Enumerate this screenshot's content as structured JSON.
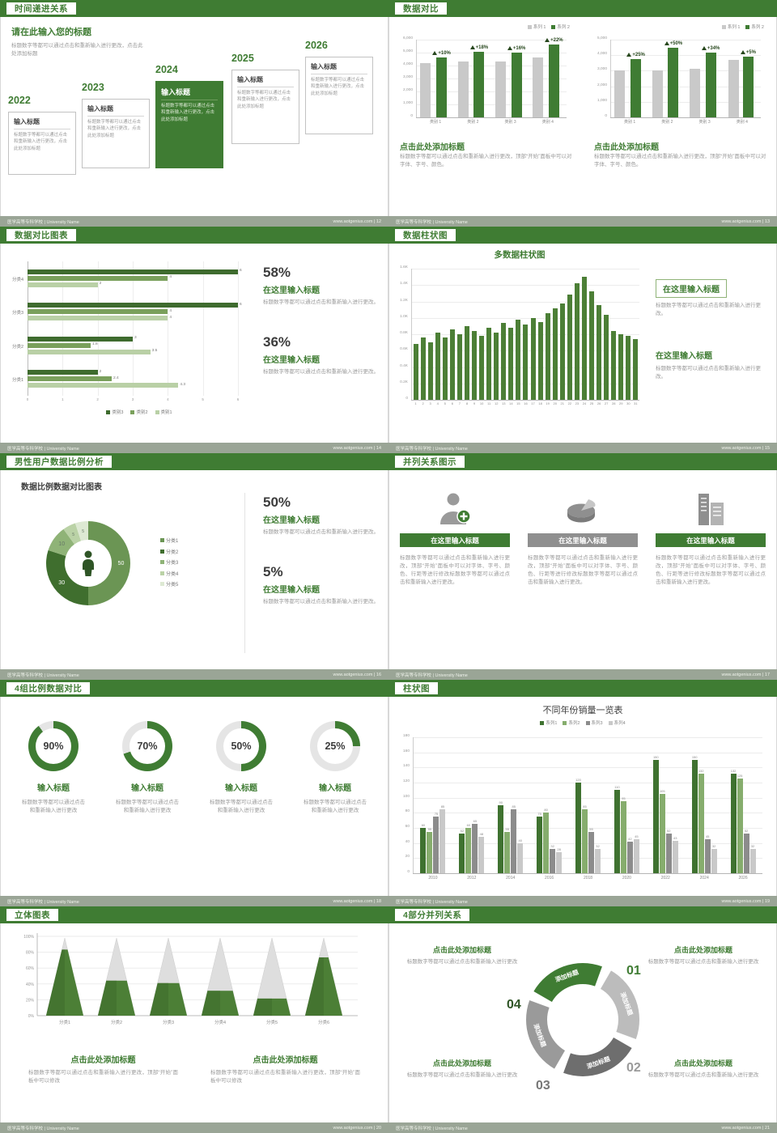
{
  "theme": {
    "green_dark": "#2f5526",
    "green": "#3f7c33",
    "green_mid": "#86ad6d",
    "green_light": "#b9d0a6",
    "gray": "#c9c9c9",
    "footer_bg": "#9aa596"
  },
  "footer": {
    "school": "医学高等专科学校 | University Name",
    "site": "www.aotgenius.com"
  },
  "slides": {
    "s12": {
      "title": "时间递进关系",
      "page_info": "www.aotgenius.com | 12",
      "intro_title": "请在此输入您的标题",
      "intro_body": "标题数字等都可以通过点击和重新输入进行更改，点击此处添加标题",
      "box_title": "输入标题",
      "box_body": "标题数字等都可以通过点击和重新输入进行更改，点击此处添加标题",
      "years": [
        "2022",
        "2023",
        "2024",
        "2025",
        "2026"
      ]
    },
    "s13": {
      "title": "数据对比",
      "page_info": "www.aotgenius.com | 13",
      "charts": [
        {
          "type": "bar",
          "categories": [
            "类别 1",
            "类别 2",
            "类别 3",
            "类别 4"
          ],
          "series": [
            {
              "name": "系列 1",
              "color": "#c9c9c9",
              "values": [
                4200,
                4300,
                4300,
                4600
              ]
            },
            {
              "name": "系列 2",
              "color": "#3f7c33",
              "values": [
                4620,
                5070,
                5000,
                5600
              ],
              "labels": [
                "+10%",
                "+18%",
                "+16%",
                "+22%"
              ]
            }
          ],
          "yticks": [
            "6,000",
            "5,000",
            "4,000",
            "3,000",
            "2,000",
            "1,000",
            "0"
          ],
          "ymax": 6000,
          "caption_title": "点击此处添加标题",
          "caption_body": "标题数字等都可以通过点击和重新输入进行更改，顶部“开始”面板中可以对字体、字号、颜色。"
        },
        {
          "type": "bar",
          "categories": [
            "类别 1",
            "类别 2",
            "类别 3",
            "类别 4"
          ],
          "series": [
            {
              "name": "系列 1",
              "color": "#c9c9c9",
              "values": [
                3000,
                3000,
                3100,
                3700
              ]
            },
            {
              "name": "系列 2",
              "color": "#3f7c33",
              "values": [
                3750,
                4500,
                4150,
                3900
              ],
              "labels": [
                "+25%",
                "+50%",
                "+34%",
                "+5%"
              ]
            }
          ],
          "yticks": [
            "5,000",
            "4,000",
            "3,000",
            "2,000",
            "1,000",
            "0"
          ],
          "ymax": 5000,
          "caption_title": "点击此处添加标题",
          "caption_body": "标题数字等都可以通过点击和重新输入进行更改，顶部“开始”面板中可以对字体、字号、颜色。"
        }
      ]
    },
    "s14": {
      "title": "数据对比图表",
      "page_info": "www.aotgenius.com | 14",
      "chart": {
        "type": "bar",
        "orientation": "horizontal",
        "categories": [
          "分类4",
          "分类3",
          "分类2",
          "分类1"
        ],
        "series": [
          {
            "name": "类别3",
            "color": "#3e6b2e",
            "values": [
              6,
              6,
              3,
              2
            ]
          },
          {
            "name": "类别2",
            "color": "#7aa05c",
            "values": [
              4,
              4,
              1.8,
              2.4
            ]
          },
          {
            "name": "类别1",
            "color": "#b9d0a6",
            "values": [
              2,
              4,
              3.5,
              4.3
            ]
          }
        ],
        "xticks": [
          "0",
          "1",
          "2",
          "3",
          "4",
          "5",
          "6"
        ],
        "xmax": 6
      },
      "stats": [
        {
          "pct": "58%",
          "title": "在这里输入标题",
          "body": "标题数字等都可以通过点击和重新输入进行更改。"
        },
        {
          "pct": "36%",
          "title": "在这里输入标题",
          "body": "标题数字等都可以通过点击和重新输入进行更改。"
        }
      ]
    },
    "s15": {
      "title": "数据柱状图",
      "page_info": "www.aotgenius.com | 15",
      "chart_title": "多数据柱状图",
      "bar_color": "#4c7f36",
      "values": [
        680,
        760,
        700,
        820,
        760,
        860,
        800,
        900,
        840,
        780,
        880,
        820,
        940,
        880,
        980,
        920,
        1000,
        950,
        1060,
        1120,
        1180,
        1280,
        1420,
        1500,
        1320,
        1160,
        1040,
        840,
        800,
        780,
        740
      ],
      "xlabels": [
        "1",
        "2",
        "3",
        "4",
        "5",
        "6",
        "7",
        "8",
        "9",
        "10",
        "11",
        "12",
        "13",
        "14",
        "15",
        "16",
        "17",
        "18",
        "19",
        "20",
        "21",
        "22",
        "23",
        "24",
        "25",
        "26",
        "27",
        "28",
        "29",
        "30",
        "31"
      ],
      "yticks": [
        "1.6K",
        "1.4K",
        "1.2K",
        "1.0K",
        "0.8K",
        "0.6K",
        "0.4K",
        "0.2K",
        "0"
      ],
      "ymax": 1600,
      "notes": [
        {
          "title": "在这里输入标题",
          "body": "标题数字等都可以通过点击和重新输入进行更改。"
        },
        {
          "title": "在这里输入标题",
          "body": "标题数字等都可以通过点击和重新输入进行更改。"
        }
      ]
    },
    "s16": {
      "title": "男性用户数据比例分析",
      "page_info": "www.aotgenius.com | 16",
      "chart_title": "数据比例数据对比图表",
      "donut": {
        "type": "pie",
        "values": [
          50,
          30,
          10,
          5,
          5
        ],
        "labels": [
          "50",
          "30",
          "10",
          "5",
          "5"
        ],
        "colors": [
          "#6b9554",
          "#3f6e2e",
          "#8fb377",
          "#bad2a6",
          "#dde9d3"
        ],
        "legend": [
          "分类1",
          "分类2",
          "分类3",
          "分类4",
          "分类5"
        ]
      },
      "stats": [
        {
          "pct": "50%",
          "title": "在这里输入标题",
          "body": "标题数字等都可以通过点击和重新输入进行更改。"
        },
        {
          "pct": "5%",
          "title": "在这里输入标题",
          "body": "标题数字等都可以通过点击和重新输入进行更改。"
        }
      ]
    },
    "s17": {
      "title": "并列关系图示",
      "page_info": "www.aotgenius.com | 17",
      "columns": [
        {
          "icon": "nurse-icon",
          "button": "在这里输入标题",
          "body": "标题数字等都可以通过点击和重新输入进行更改，顶部“开始”面板中可以对字体、字号、颜色、行距等进行修改标题数字等都可以通过点击和重新输入进行更改。"
        },
        {
          "icon": "pie-3d-icon",
          "button": "在这里输入标题",
          "body": "标题数字等都可以通过点击和重新输入进行更改，顶部“开始”面板中可以对字体、字号、颜色、行距等进行修改标题数字等都可以通过点击和重新输入进行更改。"
        },
        {
          "icon": "building-icon",
          "button": "在这里输入标题",
          "body": "标题数字等都可以通过点击和重新输入进行更改，顶部“开始”面板中可以对字体、字号、颜色、行距等进行修改标题数字等都可以通过点击和重新输入进行更改。"
        }
      ]
    },
    "s18": {
      "title": "4组比例数据对比",
      "page_info": "www.aotgenius.com | 18",
      "ring_color": "#3f7c33",
      "items": [
        {
          "pct": 90,
          "label": "90%",
          "title": "输入标题",
          "body": "标题数字等都可以通过点击和重新输入进行更改"
        },
        {
          "pct": 70,
          "label": "70%",
          "title": "输入标题",
          "body": "标题数字等都可以通过点击和重新输入进行更改"
        },
        {
          "pct": 50,
          "label": "50%",
          "title": "输入标题",
          "body": "标题数字等都可以通过点击和重新输入进行更改"
        },
        {
          "pct": 25,
          "label": "25%",
          "title": "输入标题",
          "body": "标题数字等都可以通过点击和重新输入进行更改"
        }
      ]
    },
    "s19": {
      "title": "柱状图",
      "page_info": "www.aotgenius.com | 19",
      "chart": {
        "type": "bar",
        "title": "不同年份销量一览表",
        "categories": [
          "2010",
          "2012",
          "2014",
          "2016",
          "2018",
          "2020",
          "2022",
          "2024",
          "2026"
        ],
        "series": [
          {
            "name": "系列1",
            "color": "#3f7230",
            "values": [
              60,
              52,
              90,
              75,
              120,
              110,
              150,
              150,
              132
            ]
          },
          {
            "name": "系列2",
            "color": "#86ad6d",
            "values": [
              55,
              60,
              55,
              80,
              85,
              95,
              105,
              132,
              125
            ]
          },
          {
            "name": "系列3",
            "color": "#8c8c8c",
            "values": [
              75,
              65,
              85,
              32,
              55,
              42,
              52,
              45,
              52
            ]
          },
          {
            "name": "系列4",
            "color": "#c9c9c9",
            "values": [
              85,
              48,
              40,
              28,
              32,
              45,
              43,
              32,
              32
            ]
          }
        ],
        "yticks": [
          "180",
          "160",
          "140",
          "120",
          "100",
          "80",
          "60",
          "40",
          "20",
          "0"
        ],
        "ymax": 180
      }
    },
    "s20": {
      "title": "立体图表",
      "page_info": "www.aotgenius.com | 20",
      "cones": {
        "type": "bar",
        "categories": [
          "分类1",
          "分类2",
          "分类3",
          "分类4",
          "分类5",
          "分类6"
        ],
        "values": [
          85,
          45,
          42,
          32,
          22,
          75
        ],
        "yticks": [
          "100%",
          "80%",
          "60%",
          "40%",
          "20%",
          "0%"
        ]
      },
      "notes": [
        {
          "title": "点击此处添加标题",
          "body": "标题数字等都可以通过点击和重新输入进行更改，顶部“开始”面板中可以修改"
        },
        {
          "title": "点击此处添加标题",
          "body": "标题数字等都可以通过点击和重新输入进行更改，顶部“开始”面板中可以修改"
        }
      ]
    },
    "s21": {
      "title": "4部分并列关系",
      "page_info": "www.aotgenius.com | 21",
      "segments": [
        "添加标题",
        "添加标题",
        "添加标题",
        "添加标题"
      ],
      "seg_colors": [
        "#3f7c33",
        "#bcbcbc",
        "#6e6e6e",
        "#9a9a9a"
      ],
      "numbers": [
        "01",
        "02",
        "03",
        "04"
      ],
      "notes": [
        {
          "title": "点击此处添加标题",
          "body": "标题数字等都可以通过点击和重新输入进行更改"
        },
        {
          "title": "点击此处添加标题",
          "body": "标题数字等都可以通过点击和重新输入进行更改"
        },
        {
          "title": "点击此处添加标题",
          "body": "标题数字等都可以通过点击和重新输入进行更改"
        },
        {
          "title": "点击此处添加标题",
          "body": "标题数字等都可以通过点击和重新输入进行更改"
        }
      ]
    }
  }
}
